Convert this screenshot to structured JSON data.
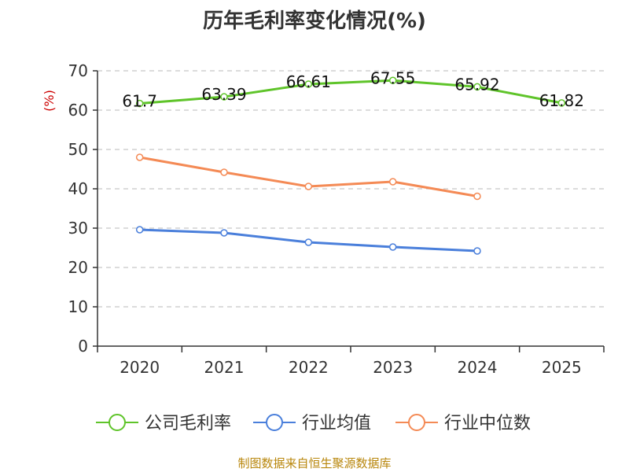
{
  "chart_data": {
    "type": "line",
    "title": "历年毛利率变化情况(%)",
    "ylabel": "(%)",
    "xlabel": "",
    "categories": [
      "2020",
      "2021",
      "2022",
      "2023",
      "2024",
      "2025"
    ],
    "ylim": [
      0,
      70
    ],
    "yticks": [
      0,
      10,
      20,
      30,
      40,
      50,
      60,
      70
    ],
    "grid": true,
    "legend_position": "bottom",
    "series": [
      {
        "name": "公司毛利率",
        "color": "#5fc42a",
        "values": [
          61.7,
          63.39,
          66.61,
          67.55,
          65.92,
          61.82
        ],
        "labels": [
          "61.7",
          "63.39",
          "66.61",
          "67.55",
          "65.92",
          "61.82"
        ]
      },
      {
        "name": "行业均值",
        "color": "#4a7fdb",
        "values": [
          29.6,
          28.8,
          26.4,
          25.2,
          24.2,
          null
        ]
      },
      {
        "name": "行业中位数",
        "color": "#f48a55",
        "values": [
          48.0,
          44.2,
          40.6,
          41.8,
          38.1,
          null
        ]
      }
    ]
  },
  "source": "制图数据来自恒生聚源数据库"
}
